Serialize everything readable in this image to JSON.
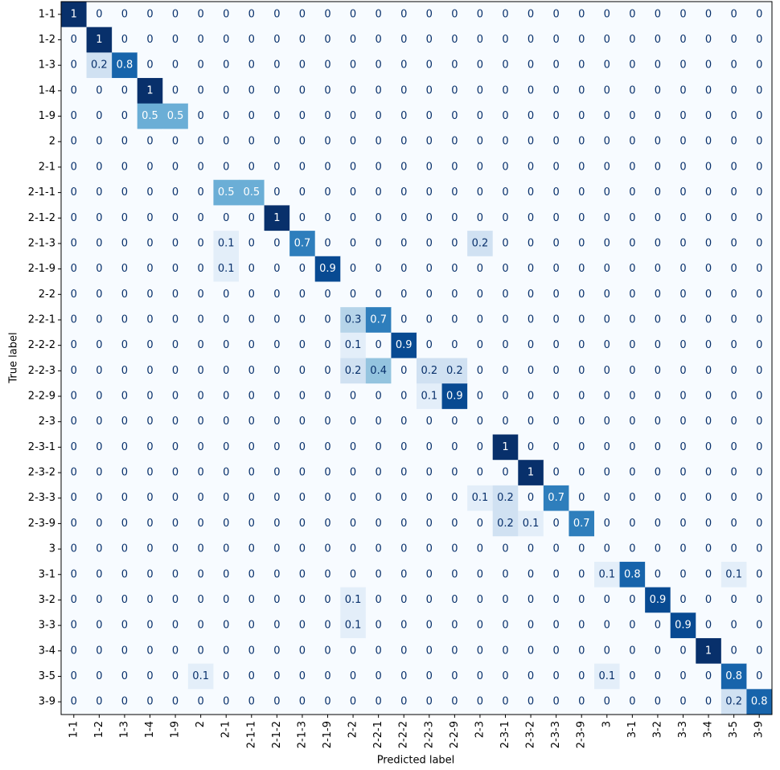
{
  "chart_data": {
    "type": "heatmap",
    "colormap": "Blues",
    "xlabel": "Predicted label",
    "ylabel": "True label",
    "categories": [
      "1-1",
      "1-2",
      "1-3",
      "1-4",
      "1-9",
      "2",
      "2-1",
      "2-1-1",
      "2-1-2",
      "2-1-3",
      "2-1-9",
      "2-2",
      "2-2-1",
      "2-2-2",
      "2-2-3",
      "2-2-9",
      "2-3",
      "2-3-1",
      "2-3-2",
      "2-3-3",
      "2-3-9",
      "3",
      "3-1",
      "3-2",
      "3-3",
      "3-4",
      "3-5",
      "3-9"
    ],
    "values": [
      [
        1,
        0,
        0,
        0,
        0,
        0,
        0,
        0,
        0,
        0,
        0,
        0,
        0,
        0,
        0,
        0,
        0,
        0,
        0,
        0,
        0,
        0,
        0,
        0,
        0,
        0,
        0,
        0
      ],
      [
        0,
        1,
        0,
        0,
        0,
        0,
        0,
        0,
        0,
        0,
        0,
        0,
        0,
        0,
        0,
        0,
        0,
        0,
        0,
        0,
        0,
        0,
        0,
        0,
        0,
        0,
        0,
        0
      ],
      [
        0,
        0.2,
        0.8,
        0,
        0,
        0,
        0,
        0,
        0,
        0,
        0,
        0,
        0,
        0,
        0,
        0,
        0,
        0,
        0,
        0,
        0,
        0,
        0,
        0,
        0,
        0,
        0,
        0
      ],
      [
        0,
        0,
        0,
        1,
        0,
        0,
        0,
        0,
        0,
        0,
        0,
        0,
        0,
        0,
        0,
        0,
        0,
        0,
        0,
        0,
        0,
        0,
        0,
        0,
        0,
        0,
        0,
        0
      ],
      [
        0,
        0,
        0,
        0.5,
        0.5,
        0,
        0,
        0,
        0,
        0,
        0,
        0,
        0,
        0,
        0,
        0,
        0,
        0,
        0,
        0,
        0,
        0,
        0,
        0,
        0,
        0,
        0,
        0
      ],
      [
        0,
        0,
        0,
        0,
        0,
        0,
        0,
        0,
        0,
        0,
        0,
        0,
        0,
        0,
        0,
        0,
        0,
        0,
        0,
        0,
        0,
        0,
        0,
        0,
        0,
        0,
        0,
        0
      ],
      [
        0,
        0,
        0,
        0,
        0,
        0,
        0,
        0,
        0,
        0,
        0,
        0,
        0,
        0,
        0,
        0,
        0,
        0,
        0,
        0,
        0,
        0,
        0,
        0,
        0,
        0,
        0,
        0
      ],
      [
        0,
        0,
        0,
        0,
        0,
        0,
        0.5,
        0.5,
        0,
        0,
        0,
        0,
        0,
        0,
        0,
        0,
        0,
        0,
        0,
        0,
        0,
        0,
        0,
        0,
        0,
        0,
        0,
        0
      ],
      [
        0,
        0,
        0,
        0,
        0,
        0,
        0,
        0,
        1,
        0,
        0,
        0,
        0,
        0,
        0,
        0,
        0,
        0,
        0,
        0,
        0,
        0,
        0,
        0,
        0,
        0,
        0,
        0
      ],
      [
        0,
        0,
        0,
        0,
        0,
        0,
        0.1,
        0,
        0,
        0.7,
        0,
        0,
        0,
        0,
        0,
        0,
        0.2,
        0,
        0,
        0,
        0,
        0,
        0,
        0,
        0,
        0,
        0,
        0
      ],
      [
        0,
        0,
        0,
        0,
        0,
        0,
        0.1,
        0,
        0,
        0,
        0.9,
        0,
        0,
        0,
        0,
        0,
        0,
        0,
        0,
        0,
        0,
        0,
        0,
        0,
        0,
        0,
        0,
        0
      ],
      [
        0,
        0,
        0,
        0,
        0,
        0,
        0,
        0,
        0,
        0,
        0,
        0,
        0,
        0,
        0,
        0,
        0,
        0,
        0,
        0,
        0,
        0,
        0,
        0,
        0,
        0,
        0,
        0
      ],
      [
        0,
        0,
        0,
        0,
        0,
        0,
        0,
        0,
        0,
        0,
        0,
        0.3,
        0.7,
        0,
        0,
        0,
        0,
        0,
        0,
        0,
        0,
        0,
        0,
        0,
        0,
        0,
        0,
        0
      ],
      [
        0,
        0,
        0,
        0,
        0,
        0,
        0,
        0,
        0,
        0,
        0,
        0.1,
        0,
        0.9,
        0,
        0,
        0,
        0,
        0,
        0,
        0,
        0,
        0,
        0,
        0,
        0,
        0,
        0
      ],
      [
        0,
        0,
        0,
        0,
        0,
        0,
        0,
        0,
        0,
        0,
        0,
        0.2,
        0.4,
        0,
        0.2,
        0.2,
        0,
        0,
        0,
        0,
        0,
        0,
        0,
        0,
        0,
        0,
        0,
        0
      ],
      [
        0,
        0,
        0,
        0,
        0,
        0,
        0,
        0,
        0,
        0,
        0,
        0,
        0,
        0,
        0.1,
        0.9,
        0,
        0,
        0,
        0,
        0,
        0,
        0,
        0,
        0,
        0,
        0,
        0
      ],
      [
        0,
        0,
        0,
        0,
        0,
        0,
        0,
        0,
        0,
        0,
        0,
        0,
        0,
        0,
        0,
        0,
        0,
        0,
        0,
        0,
        0,
        0,
        0,
        0,
        0,
        0,
        0,
        0
      ],
      [
        0,
        0,
        0,
        0,
        0,
        0,
        0,
        0,
        0,
        0,
        0,
        0,
        0,
        0,
        0,
        0,
        0,
        1,
        0,
        0,
        0,
        0,
        0,
        0,
        0,
        0,
        0,
        0
      ],
      [
        0,
        0,
        0,
        0,
        0,
        0,
        0,
        0,
        0,
        0,
        0,
        0,
        0,
        0,
        0,
        0,
        0,
        0,
        1,
        0,
        0,
        0,
        0,
        0,
        0,
        0,
        0,
        0
      ],
      [
        0,
        0,
        0,
        0,
        0,
        0,
        0,
        0,
        0,
        0,
        0,
        0,
        0,
        0,
        0,
        0,
        0.1,
        0.2,
        0,
        0.7,
        0,
        0,
        0,
        0,
        0,
        0,
        0,
        0
      ],
      [
        0,
        0,
        0,
        0,
        0,
        0,
        0,
        0,
        0,
        0,
        0,
        0,
        0,
        0,
        0,
        0,
        0,
        0.2,
        0.1,
        0,
        0.7,
        0,
        0,
        0,
        0,
        0,
        0,
        0
      ],
      [
        0,
        0,
        0,
        0,
        0,
        0,
        0,
        0,
        0,
        0,
        0,
        0,
        0,
        0,
        0,
        0,
        0,
        0,
        0,
        0,
        0,
        0,
        0,
        0,
        0,
        0,
        0,
        0
      ],
      [
        0,
        0,
        0,
        0,
        0,
        0,
        0,
        0,
        0,
        0,
        0,
        0,
        0,
        0,
        0,
        0,
        0,
        0,
        0,
        0,
        0,
        0.1,
        0.8,
        0,
        0,
        0,
        0.1,
        0
      ],
      [
        0,
        0,
        0,
        0,
        0,
        0,
        0,
        0,
        0,
        0,
        0,
        0.1,
        0,
        0,
        0,
        0,
        0,
        0,
        0,
        0,
        0,
        0,
        0,
        0.9,
        0,
        0,
        0,
        0
      ],
      [
        0,
        0,
        0,
        0,
        0,
        0,
        0,
        0,
        0,
        0,
        0,
        0.1,
        0,
        0,
        0,
        0,
        0,
        0,
        0,
        0,
        0,
        0,
        0,
        0,
        0.9,
        0,
        0,
        0
      ],
      [
        0,
        0,
        0,
        0,
        0,
        0,
        0,
        0,
        0,
        0,
        0,
        0,
        0,
        0,
        0,
        0,
        0,
        0,
        0,
        0,
        0,
        0,
        0,
        0,
        0,
        1,
        0,
        0
      ],
      [
        0,
        0,
        0,
        0,
        0,
        0.1,
        0,
        0,
        0,
        0,
        0,
        0,
        0,
        0,
        0,
        0,
        0,
        0,
        0,
        0,
        0,
        0.1,
        0,
        0,
        0,
        0,
        0.8,
        0
      ],
      [
        0,
        0,
        0,
        0,
        0,
        0,
        0,
        0,
        0,
        0,
        0,
        0,
        0,
        0,
        0,
        0,
        0,
        0,
        0,
        0,
        0,
        0,
        0,
        0,
        0,
        0,
        0.2,
        0.8
      ]
    ]
  }
}
